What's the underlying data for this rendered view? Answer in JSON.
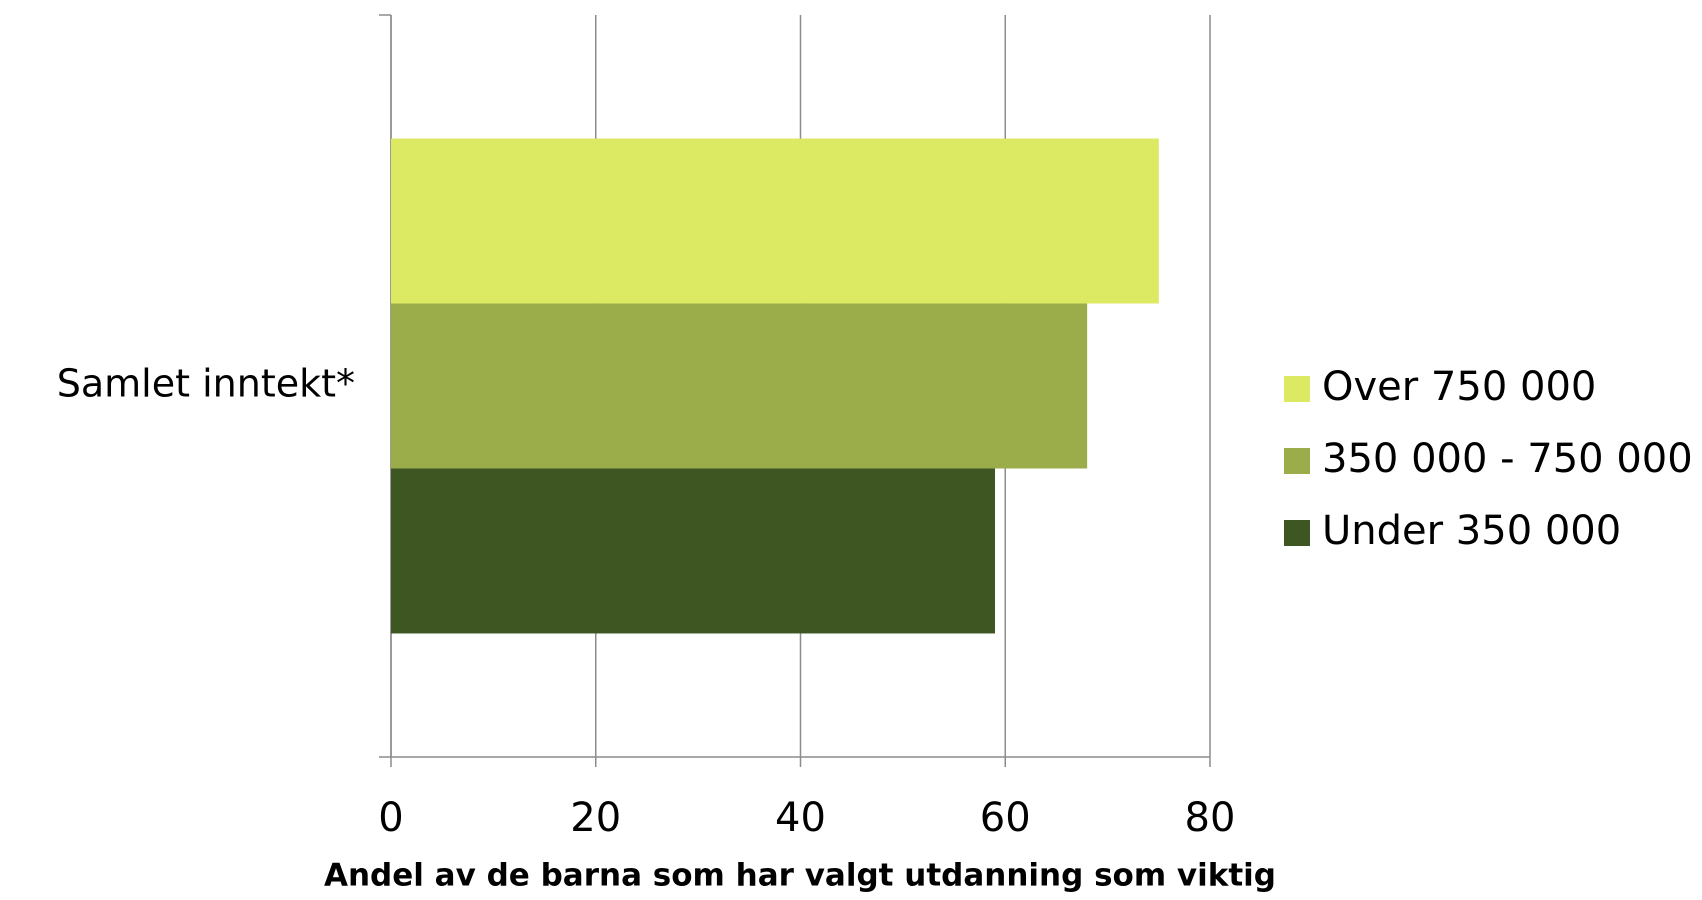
{
  "chart_data": {
    "type": "bar",
    "orientation": "horizontal",
    "categories": [
      "Samlet inntekt*"
    ],
    "series": [
      {
        "name": "Over 750 000",
        "color": "#dce963",
        "values": [
          75
        ]
      },
      {
        "name": "350 000 - 750 000",
        "color": "#9bad4b",
        "values": [
          68
        ]
      },
      {
        "name": "Under 350 000",
        "color": "#3d5622",
        "values": [
          59
        ]
      }
    ],
    "xlabel": "Andel av de barna som har valgt utdanning som viktig",
    "xlim": [
      0,
      80
    ],
    "xticks": [
      0,
      20,
      40,
      60,
      80
    ],
    "grid": true,
    "legend": "right"
  }
}
